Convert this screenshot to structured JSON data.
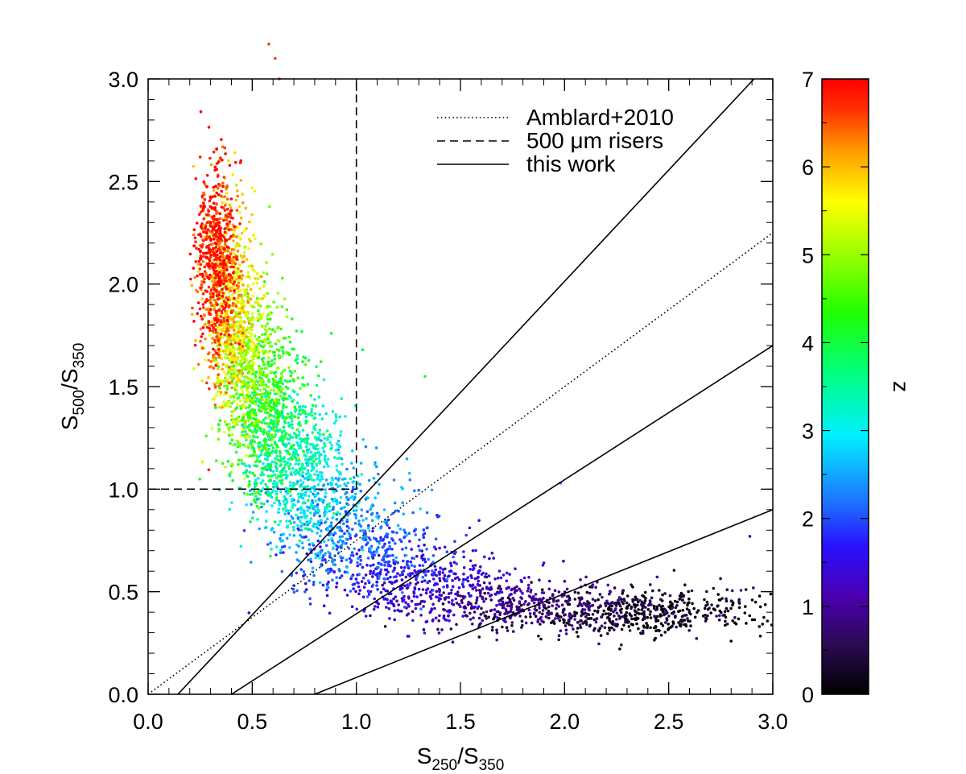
{
  "chart_data": {
    "type": "scatter",
    "x_title": {
      "base": "S",
      "sub1": "250",
      "mid": "/S",
      "sub2": "350"
    },
    "y_title": {
      "base": "S",
      "sub1": "500",
      "mid": "/S",
      "sub2": "350"
    },
    "xlim": [
      0.0,
      3.0
    ],
    "ylim": [
      0.0,
      3.0
    ],
    "x_ticks": [
      "0.0",
      "0.5",
      "1.0",
      "1.5",
      "2.0",
      "2.5",
      "3.0"
    ],
    "y_ticks": [
      "0.0",
      "0.5",
      "1.0",
      "1.5",
      "2.0",
      "2.5",
      "3.0"
    ],
    "x_tick_values": [
      0,
      0.5,
      1.0,
      1.5,
      2.0,
      2.5,
      3.0
    ],
    "y_tick_values": [
      0,
      0.5,
      1.0,
      1.5,
      2.0,
      2.5,
      3.0
    ],
    "grid": false,
    "legend": {
      "placement": "top-right",
      "entries": [
        {
          "label": "Amblard+2010",
          "style": "dotted"
        },
        {
          "label": "500 μm risers",
          "style": "dashed"
        },
        {
          "label": "this work",
          "style": "solid"
        }
      ]
    },
    "colorbar": {
      "label": "z",
      "range": [
        0,
        7
      ],
      "ticks": [
        "0",
        "1",
        "2",
        "3",
        "4",
        "5",
        "6",
        "7"
      ],
      "tick_values": [
        0,
        1,
        2,
        3,
        4,
        5,
        6,
        7
      ]
    },
    "lines": [
      {
        "name": "Amblard+2010",
        "style": "dotted",
        "points": [
          [
            0.0,
            0.0
          ],
          [
            3.0,
            2.25
          ]
        ]
      },
      {
        "name": "500 μm risers vertical",
        "style": "dashed",
        "points": [
          [
            1.0,
            1.0
          ],
          [
            1.0,
            3.0
          ]
        ]
      },
      {
        "name": "500 μm risers horizontal",
        "style": "dashed",
        "points": [
          [
            0.0,
            1.0
          ],
          [
            1.0,
            1.0
          ]
        ]
      },
      {
        "name": "this work z=4",
        "style": "solid",
        "points": [
          [
            0.143,
            0.0
          ],
          [
            2.91,
            3.0
          ]
        ]
      },
      {
        "name": "this work z=2",
        "style": "solid",
        "points": [
          [
            0.4,
            0.0
          ],
          [
            3.0,
            1.7
          ]
        ]
      },
      {
        "name": "this work z=1",
        "style": "solid",
        "points": [
          [
            0.8,
            0.0
          ],
          [
            3.0,
            0.9
          ]
        ]
      }
    ],
    "scatter_model": {
      "description": "redshift-coloured simulated sources",
      "tracks": [
        {
          "z": 0.0,
          "x": 2.45,
          "y": 0.4,
          "sx": 0.3,
          "sy": 0.055
        },
        {
          "z": 0.5,
          "x": 2.1,
          "y": 0.4,
          "sx": 0.32,
          "sy": 0.06
        },
        {
          "z": 1.0,
          "x": 1.7,
          "y": 0.45,
          "sx": 0.3,
          "sy": 0.07
        },
        {
          "z": 1.5,
          "x": 1.3,
          "y": 0.55,
          "sx": 0.24,
          "sy": 0.09
        },
        {
          "z": 2.0,
          "x": 1.05,
          "y": 0.7,
          "sx": 0.2,
          "sy": 0.11
        },
        {
          "z": 2.5,
          "x": 0.88,
          "y": 0.9,
          "sx": 0.16,
          "sy": 0.13
        },
        {
          "z": 3.0,
          "x": 0.75,
          "y": 1.05,
          "sx": 0.13,
          "sy": 0.16
        },
        {
          "z": 3.5,
          "x": 0.65,
          "y": 1.2,
          "sx": 0.11,
          "sy": 0.18
        },
        {
          "z": 4.0,
          "x": 0.58,
          "y": 1.35,
          "sx": 0.1,
          "sy": 0.2
        },
        {
          "z": 4.5,
          "x": 0.52,
          "y": 1.5,
          "sx": 0.09,
          "sy": 0.21
        },
        {
          "z": 5.0,
          "x": 0.47,
          "y": 1.65,
          "sx": 0.08,
          "sy": 0.22
        },
        {
          "z": 5.5,
          "x": 0.42,
          "y": 1.8,
          "sx": 0.07,
          "sy": 0.24
        },
        {
          "z": 6.0,
          "x": 0.38,
          "y": 1.95,
          "sx": 0.06,
          "sy": 0.25
        },
        {
          "z": 6.5,
          "x": 0.34,
          "y": 2.05,
          "sx": 0.05,
          "sy": 0.25
        },
        {
          "z": 7.0,
          "x": 0.32,
          "y": 2.15,
          "sx": 0.05,
          "sy": 0.22
        }
      ],
      "outliers": [
        [
          0.58,
          3.17
        ],
        [
          0.61,
          3.1
        ],
        [
          0.63,
          3.0
        ],
        [
          1.03,
          1.68
        ],
        [
          0.88,
          1.76
        ],
        [
          1.33,
          1.55
        ],
        [
          1.98,
          1.03
        ],
        [
          2.89,
          0.77
        ]
      ]
    }
  }
}
